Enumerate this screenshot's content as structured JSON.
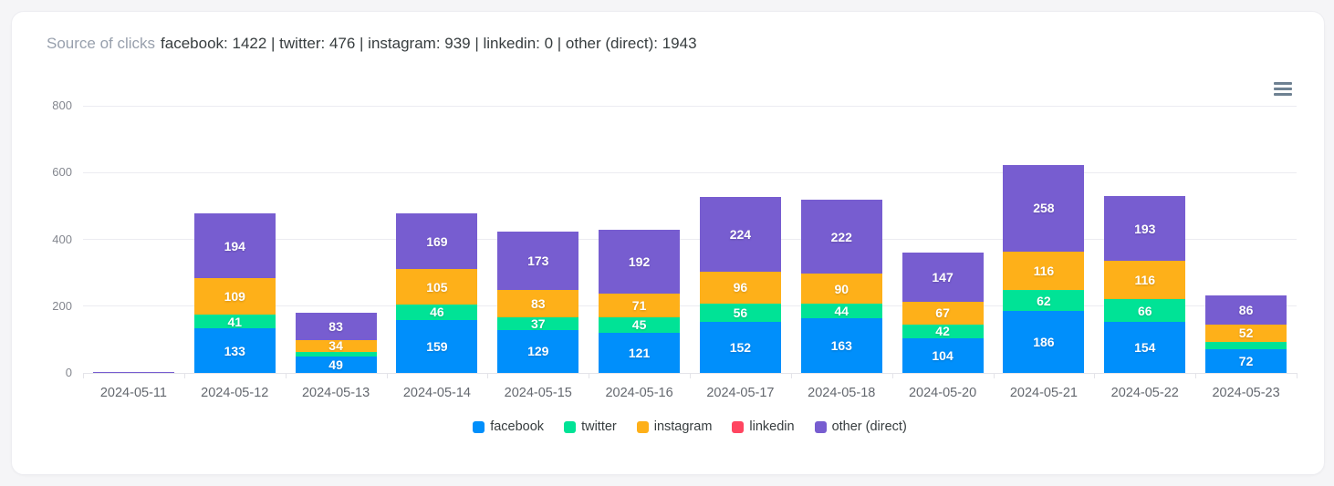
{
  "header": {
    "title_muted": "Source of clicks",
    "title_values": "facebook: 1422 | twitter: 476 | instagram: 939 | linkedin: 0 | other (direct): 1943"
  },
  "toolbar": {
    "menu_icon": "hamburger-menu-icon"
  },
  "chart_data": {
    "type": "bar",
    "stacked": true,
    "title": "Source of clicks",
    "categories": [
      "2024-05-11",
      "2024-05-12",
      "2024-05-13",
      "2024-05-14",
      "2024-05-15",
      "2024-05-16",
      "2024-05-17",
      "2024-05-18",
      "2024-05-20",
      "2024-05-21",
      "2024-05-22",
      "2024-05-23"
    ],
    "series": [
      {
        "name": "facebook",
        "color": "#008FFB",
        "total": 1422,
        "values": [
          0,
          133,
          49,
          159,
          129,
          121,
          152,
          163,
          104,
          186,
          154,
          72
        ]
      },
      {
        "name": "twitter",
        "color": "#00E396",
        "total": 476,
        "values": [
          0,
          41,
          15,
          46,
          37,
          45,
          56,
          44,
          42,
          62,
          66,
          22
        ]
      },
      {
        "name": "instagram",
        "color": "#FEB019",
        "total": 939,
        "values": [
          0,
          109,
          34,
          105,
          83,
          71,
          96,
          90,
          67,
          116,
          116,
          52
        ]
      },
      {
        "name": "linkedin",
        "color": "#FF4560",
        "total": 0,
        "values": [
          0,
          0,
          0,
          0,
          0,
          0,
          0,
          0,
          0,
          0,
          0,
          0
        ]
      },
      {
        "name": "other (direct)",
        "color": "#775DD0",
        "total": 1943,
        "values": [
          2,
          194,
          83,
          169,
          173,
          192,
          224,
          222,
          147,
          258,
          193,
          86
        ]
      }
    ],
    "shown_value_labels_note": "segments too short to fit text show no label (05-11 other:2, 05-13 twitter:15, 05-23 twitter:22 are unlabeled)",
    "yticks": [
      0,
      200,
      400,
      600,
      800
    ],
    "ylim": [
      0,
      800
    ],
    "xlabel": "",
    "ylabel": "",
    "grid": true,
    "legend_position": "bottom",
    "value_label_color": "#ffffff"
  }
}
